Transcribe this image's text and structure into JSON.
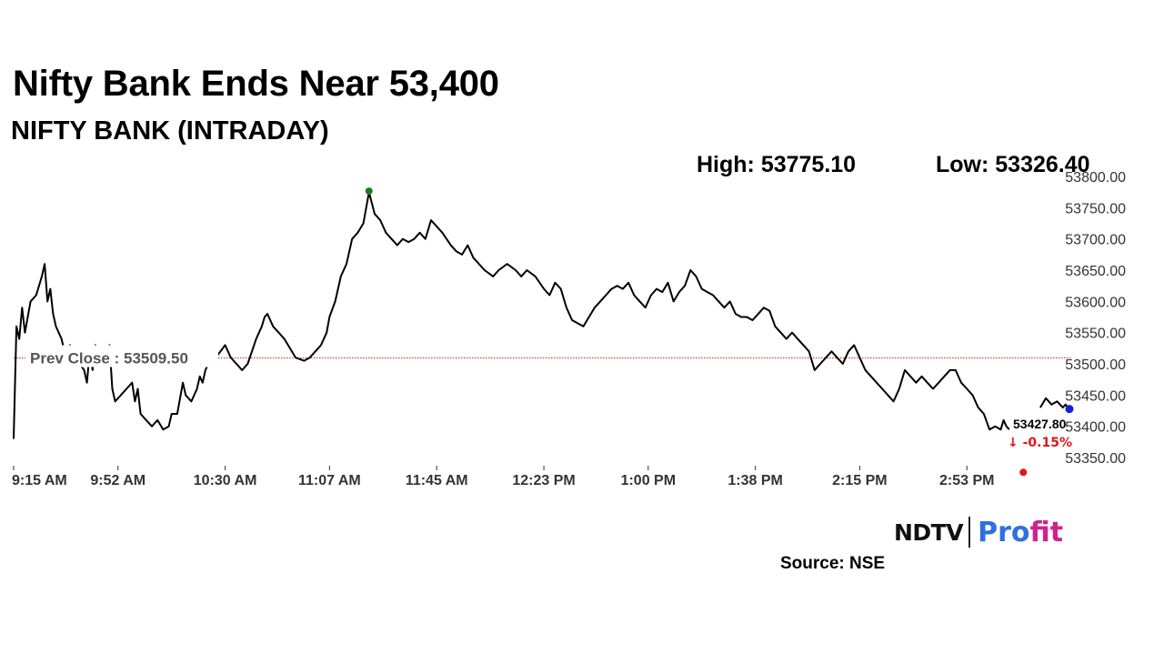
{
  "headline": "Nifty Bank Ends Near 53,400",
  "chart_data": {
    "type": "line",
    "title": "NIFTY BANK (INTRADAY)",
    "high_label": "High: 53775.10",
    "low_label": "Low: 53326.40",
    "high": 53775.1,
    "low": 53326.4,
    "prev_close_label": "Prev Close : 53509.50",
    "prev_close": 53509.5,
    "last_label": "53427.80",
    "last_value": 53427.8,
    "change_label": "-0.15%",
    "change_arrow": "↓",
    "ylim": [
      53337,
      53800
    ],
    "y_ticks": [
      53350,
      53400,
      53450,
      53500,
      53550,
      53600,
      53650,
      53700,
      53750,
      53800
    ],
    "y_tick_labels": [
      "53350.00",
      "53400.00",
      "53450.00",
      "53500.00",
      "53550.00",
      "53600.00",
      "53650.00",
      "53700.00",
      "53750.00",
      "53800.00"
    ],
    "x_tick_labels": [
      "9:15 AM",
      "9:52 AM",
      "10:30 AM",
      "11:07 AM",
      "11:45 AM",
      "12:23 PM",
      "1:00 PM",
      "1:38 PM",
      "2:15 PM",
      "2:53 PM"
    ],
    "x_tick_minutes": [
      0,
      37,
      75,
      112,
      150,
      188,
      225,
      263,
      300,
      338
    ],
    "x_range_minutes": [
      0,
      375
    ],
    "series": [
      {
        "points": [
          [
            0,
            53380
          ],
          [
            1,
            53560
          ],
          [
            2,
            53540
          ],
          [
            3,
            53590
          ],
          [
            4,
            53550
          ],
          [
            6,
            53600
          ],
          [
            8,
            53610
          ],
          [
            10,
            53640
          ],
          [
            11,
            53660
          ],
          [
            12,
            53600
          ],
          [
            13,
            53620
          ],
          [
            14,
            53580
          ],
          [
            15,
            53560
          ],
          [
            17,
            53540
          ],
          [
            18,
            53520
          ],
          [
            20,
            53530
          ],
          [
            22,
            53510
          ],
          [
            25,
            53490
          ],
          [
            26,
            53470
          ],
          [
            27,
            53520
          ],
          [
            28,
            53490
          ],
          [
            29,
            53530
          ],
          [
            30,
            53515
          ],
          [
            32,
            53520
          ],
          [
            33,
            53510
          ],
          [
            34,
            53530
          ],
          [
            35,
            53460
          ],
          [
            36,
            53440
          ],
          [
            38,
            53450
          ],
          [
            40,
            53460
          ],
          [
            42,
            53470
          ],
          [
            43,
            53440
          ],
          [
            44,
            53460
          ],
          [
            45,
            53420
          ],
          [
            47,
            53410
          ],
          [
            49,
            53400
          ],
          [
            51,
            53410
          ],
          [
            53,
            53395
          ],
          [
            55,
            53400
          ],
          [
            56,
            53420
          ],
          [
            58,
            53420
          ],
          [
            60,
            53470
          ],
          [
            61,
            53450
          ],
          [
            63,
            53440
          ],
          [
            65,
            53460
          ],
          [
            66,
            53480
          ],
          [
            67,
            53470
          ],
          [
            68,
            53490
          ],
          [
            69,
            53500
          ],
          [
            70,
            53500
          ],
          [
            75,
            53530
          ],
          [
            77,
            53510
          ],
          [
            79,
            53500
          ],
          [
            81,
            53490
          ],
          [
            83,
            53500
          ],
          [
            86,
            53540
          ],
          [
            88,
            53560
          ],
          [
            89,
            53575
          ],
          [
            90,
            53580
          ],
          [
            92,
            53560
          ],
          [
            94,
            53550
          ],
          [
            96,
            53540
          ],
          [
            98,
            53525
          ],
          [
            100,
            53510
          ],
          [
            103,
            53505
          ],
          [
            105,
            53510
          ],
          [
            107,
            53520
          ],
          [
            109,
            53530
          ],
          [
            111,
            53550
          ],
          [
            112,
            53575
          ],
          [
            114,
            53600
          ],
          [
            116,
            53640
          ],
          [
            118,
            53660
          ],
          [
            120,
            53700
          ],
          [
            122,
            53710
          ],
          [
            124,
            53725
          ],
          [
            126,
            53775
          ],
          [
            128,
            53740
          ],
          [
            130,
            53730
          ],
          [
            132,
            53710
          ],
          [
            134,
            53700
          ],
          [
            136,
            53690
          ],
          [
            138,
            53700
          ],
          [
            140,
            53695
          ],
          [
            142,
            53700
          ],
          [
            144,
            53710
          ],
          [
            146,
            53700
          ],
          [
            148,
            53730
          ],
          [
            150,
            53720
          ],
          [
            152,
            53710
          ],
          [
            155,
            53690
          ],
          [
            157,
            53680
          ],
          [
            159,
            53675
          ],
          [
            161,
            53690
          ],
          [
            163,
            53670
          ],
          [
            165,
            53660
          ],
          [
            167,
            53650
          ],
          [
            170,
            53640
          ],
          [
            172,
            53650
          ],
          [
            175,
            53660
          ],
          [
            178,
            53650
          ],
          [
            180,
            53640
          ],
          [
            182,
            53650
          ],
          [
            185,
            53640
          ],
          [
            188,
            53620
          ],
          [
            190,
            53610
          ],
          [
            192,
            53630
          ],
          [
            194,
            53620
          ],
          [
            196,
            53590
          ],
          [
            198,
            53570
          ],
          [
            200,
            53565
          ],
          [
            202,
            53560
          ],
          [
            204,
            53575
          ],
          [
            206,
            53590
          ],
          [
            208,
            53600
          ],
          [
            210,
            53610
          ],
          [
            212,
            53620
          ],
          [
            214,
            53625
          ],
          [
            216,
            53620
          ],
          [
            218,
            53630
          ],
          [
            220,
            53610
          ],
          [
            222,
            53600
          ],
          [
            224,
            53590
          ],
          [
            226,
            53610
          ],
          [
            228,
            53620
          ],
          [
            230,
            53615
          ],
          [
            232,
            53630
          ],
          [
            234,
            53600
          ],
          [
            236,
            53615
          ],
          [
            238,
            53625
          ],
          [
            240,
            53650
          ],
          [
            242,
            53640
          ],
          [
            244,
            53620
          ],
          [
            246,
            53615
          ],
          [
            248,
            53610
          ],
          [
            250,
            53600
          ],
          [
            252,
            53590
          ],
          [
            254,
            53600
          ],
          [
            256,
            53580
          ],
          [
            258,
            53575
          ],
          [
            260,
            53575
          ],
          [
            262,
            53570
          ],
          [
            264,
            53580
          ],
          [
            266,
            53590
          ],
          [
            268,
            53585
          ],
          [
            270,
            53560
          ],
          [
            272,
            53550
          ],
          [
            274,
            53540
          ],
          [
            276,
            53550
          ],
          [
            278,
            53540
          ],
          [
            280,
            53530
          ],
          [
            282,
            53520
          ],
          [
            284,
            53490
          ],
          [
            286,
            53500
          ],
          [
            288,
            53510
          ],
          [
            290,
            53520
          ],
          [
            292,
            53510
          ],
          [
            294,
            53500
          ],
          [
            296,
            53520
          ],
          [
            298,
            53530
          ],
          [
            300,
            53510
          ],
          [
            302,
            53490
          ],
          [
            304,
            53480
          ],
          [
            306,
            53470
          ],
          [
            308,
            53460
          ],
          [
            310,
            53450
          ],
          [
            312,
            53440
          ],
          [
            314,
            53460
          ],
          [
            316,
            53490
          ],
          [
            318,
            53480
          ],
          [
            320,
            53470
          ],
          [
            322,
            53480
          ],
          [
            324,
            53470
          ],
          [
            326,
            53460
          ],
          [
            328,
            53470
          ],
          [
            330,
            53480
          ],
          [
            332,
            53490
          ],
          [
            334,
            53490
          ],
          [
            336,
            53470
          ],
          [
            338,
            53460
          ],
          [
            340,
            53450
          ],
          [
            342,
            53430
          ],
          [
            344,
            53420
          ],
          [
            346,
            53395
          ],
          [
            348,
            53400
          ],
          [
            350,
            53395
          ],
          [
            351,
            53410
          ],
          [
            352,
            53400
          ],
          [
            353,
            53395
          ],
          null,
          [
            364,
            53430
          ],
          [
            366,
            53445
          ],
          [
            368,
            53435
          ],
          [
            370,
            53440
          ],
          [
            372,
            53430
          ],
          [
            373,
            53435
          ],
          [
            374,
            53428
          ],
          [
            375,
            53427.8
          ]
        ]
      }
    ],
    "colors": {
      "line": "#000000",
      "prev_close_line": "#c62828",
      "high_marker": "#1a7f1a",
      "low_marker": "#e0161b",
      "last_marker": "#1520d6",
      "change_text": "#e0161b",
      "axis_text": "#333333",
      "prev_close_text": "#555555"
    },
    "markers": {
      "high_minute": 126,
      "low_minute": 358,
      "last_minute": 375
    }
  },
  "brand": {
    "part1": "NDTV",
    "part2_a": "Pro",
    "part2_b": "fit"
  },
  "source": "Source: NSE"
}
